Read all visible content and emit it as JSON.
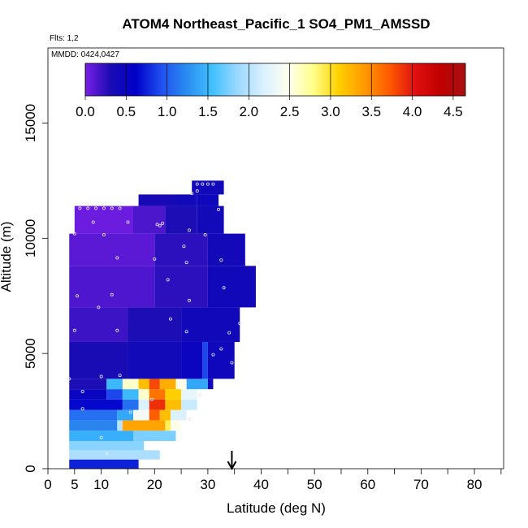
{
  "chart_data": {
    "type": "heatmap",
    "title": "ATOM4 Northeast_Pacific_1 SO4_PM1_AMSSD",
    "flights_text": "Flts: 1,2",
    "dates_text": "MMDD: 0424,0427",
    "xlabel": "Latitude (deg N)",
    "ylabel": "Altitude (m)",
    "xlim": [
      0,
      85
    ],
    "ylim": [
      0,
      18000
    ],
    "x_ticks_labeled": [
      0,
      5,
      10,
      20,
      30,
      40,
      50,
      60,
      70,
      80
    ],
    "x_ticks_minor": [
      15,
      25,
      35,
      45,
      55,
      65,
      75,
      85
    ],
    "y_ticks": [
      0,
      5000,
      10000,
      15000
    ],
    "colorbar": {
      "min": 0.0,
      "max": 4.65,
      "ticks": [
        "0.0",
        "0.5",
        "1.0",
        "1.5",
        "2.0",
        "2.5",
        "3.0",
        "3.5",
        "4.0",
        "4.5"
      ],
      "tick_values": [
        0.0,
        0.5,
        1.0,
        1.5,
        2.0,
        2.5,
        3.0,
        3.5,
        4.0,
        4.5
      ],
      "colors": [
        "#7a1fe6",
        "#1a0cb3",
        "#0000c8",
        "#1f4ff0",
        "#2a8cf0",
        "#3fc0ff",
        "#9ad8ff",
        "#d8f0ff",
        "#fffff0",
        "#ffff8a",
        "#ffd000",
        "#ff9a00",
        "#ff5a00",
        "#e01010",
        "#c00000",
        "#a81010"
      ]
    },
    "marker": {
      "latitude": 34.5,
      "symbol": "down-arrow"
    },
    "rows": [
      {
        "alt_bottom": 0,
        "alt_top": 400,
        "cells": [
          [
            4,
            17,
            0.75
          ]
        ]
      },
      {
        "alt_bottom": 400,
        "alt_top": 800,
        "cells": [
          [
            4,
            21,
            1.95
          ]
        ]
      },
      {
        "alt_bottom": 800,
        "alt_top": 1200,
        "cells": [
          [
            4,
            18,
            1.8
          ]
        ]
      },
      {
        "alt_bottom": 1200,
        "alt_top": 1650,
        "cells": [
          [
            4,
            16,
            1.45
          ],
          [
            16,
            24,
            1.75
          ]
        ]
      },
      {
        "alt_bottom": 1650,
        "alt_top": 2100,
        "cells": [
          [
            4,
            13,
            1.2
          ],
          [
            13,
            14,
            2.0
          ],
          [
            14,
            22,
            3.35
          ],
          [
            22,
            23,
            2.9
          ],
          [
            23,
            25,
            2.5
          ]
        ]
      },
      {
        "alt_bottom": 2100,
        "alt_top": 2550,
        "cells": [
          [
            4,
            13,
            1.1
          ],
          [
            13,
            16,
            1.4
          ],
          [
            16,
            19,
            2.4
          ],
          [
            19,
            21,
            3.7
          ],
          [
            21,
            23,
            3.2
          ],
          [
            23,
            26,
            2.2
          ]
        ]
      },
      {
        "alt_bottom": 2550,
        "alt_top": 3000,
        "cells": [
          [
            4,
            14,
            0.65
          ],
          [
            14,
            17,
            1.1
          ],
          [
            17,
            19,
            2.2
          ],
          [
            19,
            22,
            3.9
          ],
          [
            22,
            25,
            3.2
          ],
          [
            25,
            28,
            2.1
          ]
        ]
      },
      {
        "alt_bottom": 3000,
        "alt_top": 3450,
        "cells": [
          [
            4,
            11,
            0.5
          ],
          [
            11,
            14,
            0.9
          ],
          [
            14,
            17,
            1.5
          ],
          [
            17,
            19,
            2.6
          ],
          [
            19,
            22,
            3.6
          ],
          [
            22,
            25,
            3.1
          ],
          [
            25,
            28,
            2.3
          ]
        ]
      },
      {
        "alt_bottom": 3450,
        "alt_top": 3900,
        "cells": [
          [
            4,
            11,
            0.3
          ],
          [
            11,
            14,
            1.5
          ],
          [
            14,
            17,
            2.6
          ],
          [
            17,
            19,
            3.2
          ],
          [
            19,
            21,
            3.8
          ],
          [
            21,
            24,
            3.3
          ],
          [
            24,
            26,
            2.5
          ],
          [
            26,
            30,
            1.4
          ],
          [
            30,
            31,
            0.4
          ]
        ]
      },
      {
        "alt_bottom": 3900,
        "alt_top": 5500,
        "cells": [
          [
            4,
            15,
            0.32
          ],
          [
            15,
            25,
            0.4
          ],
          [
            25,
            29,
            0.48
          ],
          [
            29,
            30,
            0.9
          ],
          [
            30,
            35,
            0.45
          ]
        ]
      },
      {
        "alt_bottom": 5500,
        "alt_top": 7000,
        "cells": [
          [
            4,
            15,
            0.2
          ],
          [
            15,
            25,
            0.3
          ],
          [
            25,
            36,
            0.42
          ]
        ]
      },
      {
        "alt_bottom": 7000,
        "alt_top": 8800,
        "cells": [
          [
            4,
            20,
            0.14
          ],
          [
            20,
            30,
            0.25
          ],
          [
            30,
            39,
            0.42
          ]
        ]
      },
      {
        "alt_bottom": 8800,
        "alt_top": 10200,
        "cells": [
          [
            4,
            20,
            0.1
          ],
          [
            20,
            30,
            0.25
          ],
          [
            30,
            37,
            0.38
          ]
        ]
      },
      {
        "alt_bottom": 10200,
        "alt_top": 11400,
        "cells": [
          [
            5,
            16,
            0.05
          ],
          [
            16,
            22,
            0.15
          ],
          [
            22,
            28,
            0.3
          ],
          [
            28,
            33,
            0.4
          ]
        ]
      },
      {
        "alt_bottom": 11400,
        "alt_top": 11900,
        "cells": [
          [
            17,
            24,
            0.35
          ],
          [
            24,
            28,
            0.4
          ],
          [
            28,
            32,
            0.44
          ]
        ]
      },
      {
        "alt_bottom": 11900,
        "alt_top": 12500,
        "cells": [
          [
            27,
            33,
            0.42
          ]
        ]
      }
    ],
    "samples": [
      [
        6,
        11300
      ],
      [
        7.5,
        11300
      ],
      [
        9,
        11300
      ],
      [
        10.5,
        11300
      ],
      [
        12,
        11300
      ],
      [
        13.5,
        11300
      ],
      [
        5,
        10200
      ],
      [
        8.5,
        10700
      ],
      [
        15,
        10700
      ],
      [
        20.5,
        10600
      ],
      [
        21.5,
        10650
      ],
      [
        21,
        10550
      ],
      [
        10.5,
        10150
      ],
      [
        26.5,
        10350
      ],
      [
        29.5,
        10150
      ],
      [
        25.5,
        9650
      ],
      [
        13,
        9150
      ],
      [
        20,
        9100
      ],
      [
        26,
        8950
      ],
      [
        32.5,
        9050
      ],
      [
        22.5,
        8200
      ],
      [
        33,
        7850
      ],
      [
        5.5,
        7500
      ],
      [
        12,
        7550
      ],
      [
        26.5,
        7300
      ],
      [
        9.5,
        7000
      ],
      [
        23,
        6500
      ],
      [
        5,
        6000
      ],
      [
        13,
        6000
      ],
      [
        26,
        5950
      ],
      [
        34,
        5900
      ],
      [
        36,
        6300
      ],
      [
        32.5,
        5200
      ],
      [
        31,
        4950
      ],
      [
        34.5,
        4600
      ],
      [
        4,
        3900
      ],
      [
        10,
        4000
      ],
      [
        13.5,
        4050
      ],
      [
        6.5,
        3350
      ],
      [
        17.5,
        3400
      ],
      [
        6.5,
        2600
      ],
      [
        19.5,
        3000
      ],
      [
        28.5,
        3200
      ],
      [
        15.5,
        2450
      ],
      [
        26.5,
        2150
      ],
      [
        10,
        1350
      ],
      [
        11,
        650
      ],
      [
        28,
        12350
      ],
      [
        29,
        12350
      ],
      [
        30,
        12350
      ],
      [
        31,
        12350
      ],
      [
        27,
        11950
      ],
      [
        32,
        11250
      ],
      [
        28,
        12050
      ]
    ]
  }
}
